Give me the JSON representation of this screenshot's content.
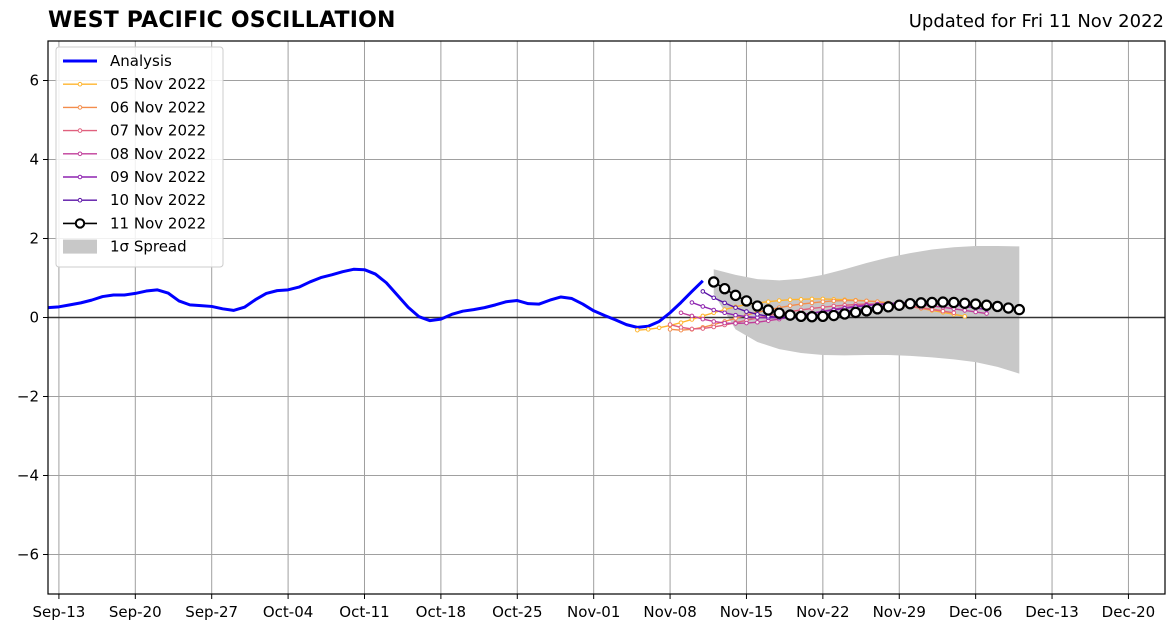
{
  "header": {
    "title": "WEST PACIFIC OSCILLATION",
    "updated": "Updated for Fri 11 Nov 2022"
  },
  "chart_data": {
    "type": "line",
    "title": "WEST PACIFIC OSCILLATION",
    "subtitle": "Updated for Fri 11 Nov 2022",
    "xlabel": "",
    "ylabel": "",
    "x_type": "date",
    "xlim": [
      "2022-09-12",
      "2022-12-23"
    ],
    "ylim": [
      -7,
      7
    ],
    "yticks": [
      -6,
      -4,
      -2,
      0,
      2,
      4,
      6
    ],
    "ytick_labels": [
      "−6",
      "−4",
      "−2",
      "0",
      "2",
      "4",
      "6"
    ],
    "xticks": [
      "2022-09-13",
      "2022-09-20",
      "2022-09-27",
      "2022-10-04",
      "2022-10-11",
      "2022-10-18",
      "2022-10-25",
      "2022-11-01",
      "2022-11-08",
      "2022-11-15",
      "2022-11-22",
      "2022-11-29",
      "2022-12-06",
      "2022-12-13",
      "2022-12-20"
    ],
    "xtick_labels": [
      "Sep-13",
      "Sep-20",
      "Sep-27",
      "Oct-04",
      "Oct-11",
      "Oct-18",
      "Oct-25",
      "Nov-01",
      "Nov-08",
      "Nov-15",
      "Nov-22",
      "Nov-29",
      "Dec-06",
      "Dec-13",
      "Dec-20"
    ],
    "grid": true,
    "legend_position": "top-left",
    "zero_line": true,
    "series": [
      {
        "name": "Analysis",
        "color": "#0000ff",
        "style": "thick-line",
        "x": [
          "2022-09-12",
          "2022-09-13",
          "2022-09-14",
          "2022-09-15",
          "2022-09-16",
          "2022-09-17",
          "2022-09-18",
          "2022-09-19",
          "2022-09-20",
          "2022-09-21",
          "2022-09-22",
          "2022-09-23",
          "2022-09-24",
          "2022-09-25",
          "2022-09-26",
          "2022-09-27",
          "2022-09-28",
          "2022-09-29",
          "2022-09-30",
          "2022-10-01",
          "2022-10-02",
          "2022-10-03",
          "2022-10-04",
          "2022-10-05",
          "2022-10-06",
          "2022-10-07",
          "2022-10-08",
          "2022-10-09",
          "2022-10-10",
          "2022-10-11",
          "2022-10-12",
          "2022-10-13",
          "2022-10-14",
          "2022-10-15",
          "2022-10-16",
          "2022-10-17",
          "2022-10-18",
          "2022-10-19",
          "2022-10-20",
          "2022-10-21",
          "2022-10-22",
          "2022-10-23",
          "2022-10-24",
          "2022-10-25",
          "2022-10-26",
          "2022-10-27",
          "2022-10-28",
          "2022-10-29",
          "2022-10-30",
          "2022-10-31",
          "2022-11-01",
          "2022-11-02",
          "2022-11-03",
          "2022-11-04",
          "2022-11-05",
          "2022-11-06",
          "2022-11-07",
          "2022-11-08",
          "2022-11-09",
          "2022-11-10",
          "2022-11-11"
        ],
        "y": [
          0.25,
          0.27,
          0.32,
          0.37,
          0.44,
          0.53,
          0.57,
          0.57,
          0.61,
          0.67,
          0.7,
          0.62,
          0.42,
          0.32,
          0.3,
          0.28,
          0.22,
          0.18,
          0.26,
          0.45,
          0.61,
          0.68,
          0.7,
          0.77,
          0.9,
          1.01,
          1.08,
          1.16,
          1.22,
          1.21,
          1.1,
          0.88,
          0.57,
          0.26,
          0.02,
          -0.08,
          -0.04,
          0.08,
          0.16,
          0.2,
          0.25,
          0.32,
          0.4,
          0.43,
          0.35,
          0.34,
          0.44,
          0.52,
          0.48,
          0.34,
          0.17,
          0.05,
          -0.06,
          -0.18,
          -0.25,
          -0.22,
          -0.1,
          0.12,
          0.38,
          0.66,
          0.93
        ]
      },
      {
        "name": "05 Nov 2022",
        "color": "#ffb52e",
        "style": "small-marker",
        "x": [
          "2022-11-05",
          "2022-11-06",
          "2022-11-07",
          "2022-11-08",
          "2022-11-09",
          "2022-11-10",
          "2022-11-11",
          "2022-11-12",
          "2022-11-13",
          "2022-11-14",
          "2022-11-15",
          "2022-11-16",
          "2022-11-17",
          "2022-11-18",
          "2022-11-19",
          "2022-11-20",
          "2022-11-21",
          "2022-11-22",
          "2022-11-23",
          "2022-11-24",
          "2022-11-25",
          "2022-11-26",
          "2022-11-27",
          "2022-11-28",
          "2022-11-29",
          "2022-11-30",
          "2022-12-01",
          "2022-12-02",
          "2022-12-03",
          "2022-12-04",
          "2022-12-05"
        ],
        "y": [
          -0.32,
          -0.3,
          -0.26,
          -0.2,
          -0.13,
          -0.05,
          0.04,
          0.12,
          0.2,
          0.27,
          0.33,
          0.37,
          0.4,
          0.43,
          0.45,
          0.46,
          0.47,
          0.47,
          0.46,
          0.45,
          0.44,
          0.42,
          0.4,
          0.37,
          0.33,
          0.28,
          0.23,
          0.18,
          0.13,
          0.08,
          0.03
        ]
      },
      {
        "name": "06 Nov 2022",
        "color": "#f38d4c",
        "style": "small-marker",
        "x": [
          "2022-11-08",
          "2022-11-09",
          "2022-11-10",
          "2022-11-11",
          "2022-11-12",
          "2022-11-13",
          "2022-11-14",
          "2022-11-15",
          "2022-11-16",
          "2022-11-17",
          "2022-11-18",
          "2022-11-19",
          "2022-11-20",
          "2022-11-21",
          "2022-11-22",
          "2022-11-23",
          "2022-11-24",
          "2022-11-25",
          "2022-11-26",
          "2022-11-27",
          "2022-11-28",
          "2022-11-29",
          "2022-11-30",
          "2022-12-01",
          "2022-12-02",
          "2022-12-03"
        ],
        "y": [
          -0.3,
          -0.32,
          -0.3,
          -0.25,
          -0.18,
          -0.1,
          -0.02,
          0.06,
          0.13,
          0.19,
          0.25,
          0.3,
          0.34,
          0.37,
          0.4,
          0.42,
          0.43,
          0.43,
          0.42,
          0.4,
          0.37,
          0.33,
          0.29,
          0.25,
          0.21,
          0.17
        ]
      },
      {
        "name": "07 Nov 2022",
        "color": "#e0607e",
        "style": "small-marker",
        "x": [
          "2022-11-08",
          "2022-11-09",
          "2022-11-10",
          "2022-11-11",
          "2022-11-12",
          "2022-11-13",
          "2022-11-14",
          "2022-11-15",
          "2022-11-16",
          "2022-11-17",
          "2022-11-18",
          "2022-11-19",
          "2022-11-20",
          "2022-11-21",
          "2022-11-22",
          "2022-11-23",
          "2022-11-24",
          "2022-11-25",
          "2022-11-26",
          "2022-11-27",
          "2022-11-28",
          "2022-11-29",
          "2022-11-30",
          "2022-12-01",
          "2022-12-02",
          "2022-12-03",
          "2022-12-04"
        ],
        "y": [
          -0.18,
          -0.25,
          -0.29,
          -0.28,
          -0.24,
          -0.19,
          -0.13,
          -0.07,
          -0.01,
          0.05,
          0.1,
          0.15,
          0.19,
          0.23,
          0.26,
          0.29,
          0.31,
          0.33,
          0.34,
          0.34,
          0.33,
          0.31,
          0.28,
          0.24,
          0.2,
          0.16,
          0.12
        ]
      },
      {
        "name": "08 Nov 2022",
        "color": "#c03d9a",
        "style": "small-marker",
        "x": [
          "2022-11-09",
          "2022-11-10",
          "2022-11-11",
          "2022-11-12",
          "2022-11-13",
          "2022-11-14",
          "2022-11-15",
          "2022-11-16",
          "2022-11-17",
          "2022-11-18",
          "2022-11-19",
          "2022-11-20",
          "2022-11-21",
          "2022-11-22",
          "2022-11-23",
          "2022-11-24",
          "2022-11-25",
          "2022-11-26",
          "2022-11-27",
          "2022-11-28",
          "2022-11-29",
          "2022-11-30",
          "2022-12-01",
          "2022-12-02",
          "2022-12-03",
          "2022-12-04",
          "2022-12-05",
          "2022-12-06",
          "2022-12-07"
        ],
        "y": [
          0.12,
          0.04,
          -0.04,
          -0.1,
          -0.14,
          -0.15,
          -0.14,
          -0.12,
          -0.08,
          -0.04,
          0.01,
          0.06,
          0.11,
          0.16,
          0.21,
          0.25,
          0.29,
          0.32,
          0.34,
          0.35,
          0.35,
          0.34,
          0.32,
          0.29,
          0.26,
          0.22,
          0.18,
          0.14,
          0.1
        ]
      },
      {
        "name": "09 Nov 2022",
        "color": "#8e24b0",
        "style": "small-marker",
        "x": [
          "2022-11-10",
          "2022-11-11",
          "2022-11-12",
          "2022-11-13",
          "2022-11-14",
          "2022-11-15",
          "2022-11-16",
          "2022-11-17",
          "2022-11-18",
          "2022-11-19",
          "2022-11-20",
          "2022-11-21",
          "2022-11-22",
          "2022-11-23",
          "2022-11-24",
          "2022-11-25",
          "2022-11-26",
          "2022-11-27",
          "2022-11-28",
          "2022-11-29",
          "2022-11-30",
          "2022-12-01",
          "2022-12-02",
          "2022-12-03",
          "2022-12-04",
          "2022-12-05",
          "2022-12-06",
          "2022-12-07"
        ],
        "y": [
          0.38,
          0.28,
          0.19,
          0.12,
          0.06,
          0.02,
          0.0,
          -0.01,
          0.0,
          0.03,
          0.07,
          0.11,
          0.15,
          0.19,
          0.23,
          0.27,
          0.3,
          0.33,
          0.35,
          0.37,
          0.38,
          0.38,
          0.37,
          0.35,
          0.32,
          0.28,
          0.24,
          0.2
        ]
      },
      {
        "name": "10 Nov 2022",
        "color": "#5a12a6",
        "style": "small-marker",
        "x": [
          "2022-11-11",
          "2022-11-12",
          "2022-11-13",
          "2022-11-14",
          "2022-11-15",
          "2022-11-16",
          "2022-11-17",
          "2022-11-18",
          "2022-11-19",
          "2022-11-20",
          "2022-11-21",
          "2022-11-22",
          "2022-11-23",
          "2022-11-24",
          "2022-11-25",
          "2022-11-26",
          "2022-11-27",
          "2022-11-28",
          "2022-11-29",
          "2022-11-30",
          "2022-12-01",
          "2022-12-02",
          "2022-12-03",
          "2022-12-04",
          "2022-12-05",
          "2022-12-06",
          "2022-12-07"
        ],
        "y": [
          0.66,
          0.5,
          0.37,
          0.25,
          0.15,
          0.08,
          0.03,
          0.0,
          -0.01,
          0.0,
          0.03,
          0.07,
          0.11,
          0.15,
          0.19,
          0.23,
          0.27,
          0.3,
          0.33,
          0.35,
          0.37,
          0.38,
          0.38,
          0.37,
          0.35,
          0.32,
          0.28
        ]
      },
      {
        "name": "11 Nov 2022",
        "color": "#000000",
        "style": "large-marker",
        "x": [
          "2022-11-12",
          "2022-11-13",
          "2022-11-14",
          "2022-11-15",
          "2022-11-16",
          "2022-11-17",
          "2022-11-18",
          "2022-11-19",
          "2022-11-20",
          "2022-11-21",
          "2022-11-22",
          "2022-11-23",
          "2022-11-24",
          "2022-11-25",
          "2022-11-26",
          "2022-11-27",
          "2022-11-28",
          "2022-11-29",
          "2022-11-30",
          "2022-12-01",
          "2022-12-02",
          "2022-12-03",
          "2022-12-04",
          "2022-12-05",
          "2022-12-06",
          "2022-12-07",
          "2022-12-08",
          "2022-12-09",
          "2022-12-10"
        ],
        "y": [
          0.9,
          0.73,
          0.56,
          0.42,
          0.29,
          0.19,
          0.11,
          0.06,
          0.03,
          0.02,
          0.03,
          0.05,
          0.09,
          0.13,
          0.17,
          0.22,
          0.27,
          0.31,
          0.35,
          0.37,
          0.38,
          0.39,
          0.38,
          0.36,
          0.34,
          0.31,
          0.28,
          0.24,
          0.2
        ]
      }
    ],
    "spread": {
      "name": "1σ Spread",
      "color": "#c8c8c8",
      "x": [
        "2022-11-12",
        "2022-11-14",
        "2022-11-16",
        "2022-11-18",
        "2022-11-20",
        "2022-11-22",
        "2022-11-24",
        "2022-11-26",
        "2022-11-28",
        "2022-11-30",
        "2022-12-02",
        "2022-12-04",
        "2022-12-06",
        "2022-12-08",
        "2022-12-10"
      ],
      "upper": [
        1.22,
        1.08,
        0.97,
        0.94,
        0.98,
        1.08,
        1.22,
        1.38,
        1.52,
        1.63,
        1.72,
        1.78,
        1.81,
        1.81,
        1.8
      ],
      "lower": [
        0.6,
        -0.3,
        -0.62,
        -0.8,
        -0.9,
        -0.95,
        -0.96,
        -0.95,
        -0.95,
        -0.97,
        -1.01,
        -1.06,
        -1.13,
        -1.25,
        -1.42
      ]
    }
  }
}
